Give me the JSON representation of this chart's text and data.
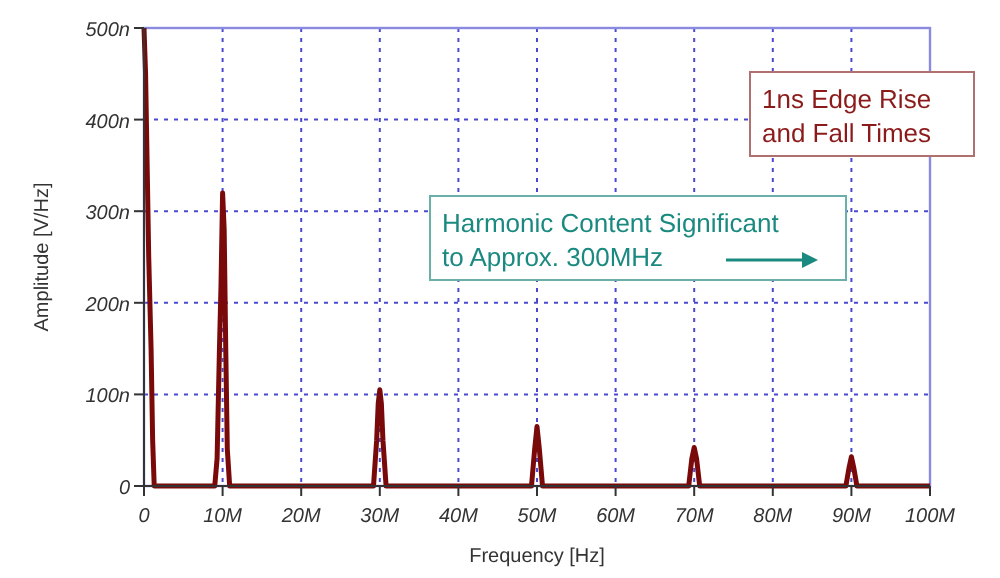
{
  "chart_data": {
    "type": "line",
    "xlabel": "Frequency [Hz]",
    "ylabel": "Amplitude [V/Hz]",
    "annotations": [
      "1ns Edge Rise\nand Fall Times",
      "Harmonic Content Significant\nto Approx. 300MHz"
    ],
    "xlim": [
      0,
      100000000
    ],
    "xticks": [
      0,
      {
        "value": 10000000,
        "label": "10M"
      },
      {
        "value": 20000000,
        "label": "20M"
      },
      {
        "value": 30000000,
        "label": "30M"
      },
      {
        "value": 40000000,
        "label": "40M"
      },
      {
        "value": 50000000,
        "label": "50M"
      },
      {
        "value": 60000000,
        "label": "60M"
      },
      {
        "value": 70000000,
        "label": "70M"
      },
      {
        "value": 80000000,
        "label": "80M"
      },
      {
        "value": 90000000,
        "label": "90M"
      },
      {
        "value": 100000000,
        "label": "100M"
      }
    ],
    "ylim": [
      0,
      500
    ],
    "yticks": [
      0,
      {
        "value": 100,
        "label": "100n"
      },
      {
        "value": 200,
        "label": "200n"
      },
      {
        "value": 300,
        "label": "300n"
      },
      {
        "value": 400,
        "label": "400n"
      },
      {
        "value": 500,
        "label": "500n"
      }
    ],
    "grid": true,
    "marker": "none",
    "line_style": "solid",
    "series": [
      {
        "color": "#7a0a0a",
        "x": [
          0,
          200000,
          400000,
          600000,
          900000,
          1100000,
          1300000,
          9000000,
          9300000,
          9600000,
          9800000,
          10000000,
          10200000,
          10400000,
          10600000,
          10900000,
          29200000,
          29600000,
          29800000,
          30000000,
          30200000,
          30400000,
          30800000,
          49300000,
          49700000,
          50000000,
          50300000,
          50700000,
          69300000,
          69700000,
          70000000,
          70300000,
          70700000,
          89300000,
          89700000,
          90000000,
          90300000,
          90700000,
          100000000
        ],
        "values": [
          500,
          450,
          350,
          250,
          150,
          50,
          0,
          0,
          30,
          150,
          220,
          320,
          280,
          150,
          40,
          0,
          0,
          50,
          90,
          105,
          90,
          50,
          0,
          0,
          40,
          65,
          40,
          0,
          0,
          30,
          42,
          30,
          0,
          0,
          20,
          32,
          20,
          0,
          0
        ]
      }
    ]
  }
}
